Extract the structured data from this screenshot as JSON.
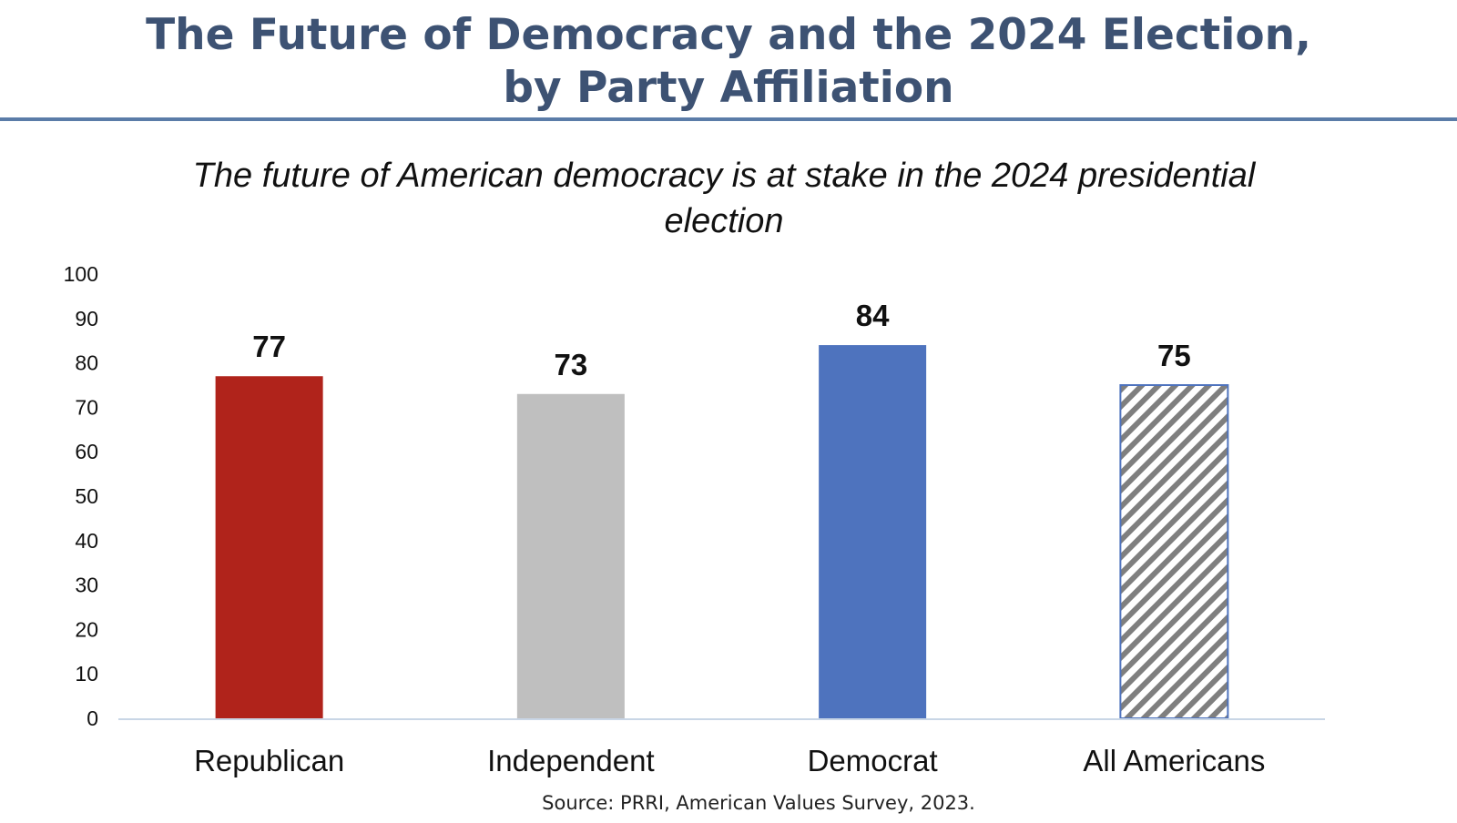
{
  "title_lines": [
    "The Future of Democracy and the 2024 Election,",
    "by Party Affiliation"
  ],
  "source": "Source: PRRI, American Values Survey, 2023.",
  "colors": {
    "title": "#3d5273",
    "rule": "#5b7ca8",
    "axis": "#c9d6e6"
  },
  "chart_data": {
    "type": "bar",
    "title": "",
    "subtitle_lines": [
      "The future of American democracy is at stake in the 2024 presidential",
      "election"
    ],
    "xlabel": "",
    "ylabel": "",
    "ylim": [
      0,
      100
    ],
    "yticks": [
      0,
      10,
      20,
      30,
      40,
      50,
      60,
      70,
      80,
      90,
      100
    ],
    "grid": false,
    "legend": "none",
    "categories": [
      "Republican",
      "Independent",
      "Democrat",
      "All Americans"
    ],
    "values": [
      77,
      73,
      84,
      75
    ],
    "data_labels": [
      "77",
      "73",
      "84",
      "75"
    ],
    "bar_styles": [
      {
        "fill": "#b0231b",
        "pattern": "solid"
      },
      {
        "fill": "#bfbfbf",
        "pattern": "solid"
      },
      {
        "fill": "#4e73be",
        "pattern": "solid"
      },
      {
        "fill": "#7f7f7f",
        "pattern": "diagonal-hatch",
        "border": "#4e73be"
      }
    ]
  }
}
